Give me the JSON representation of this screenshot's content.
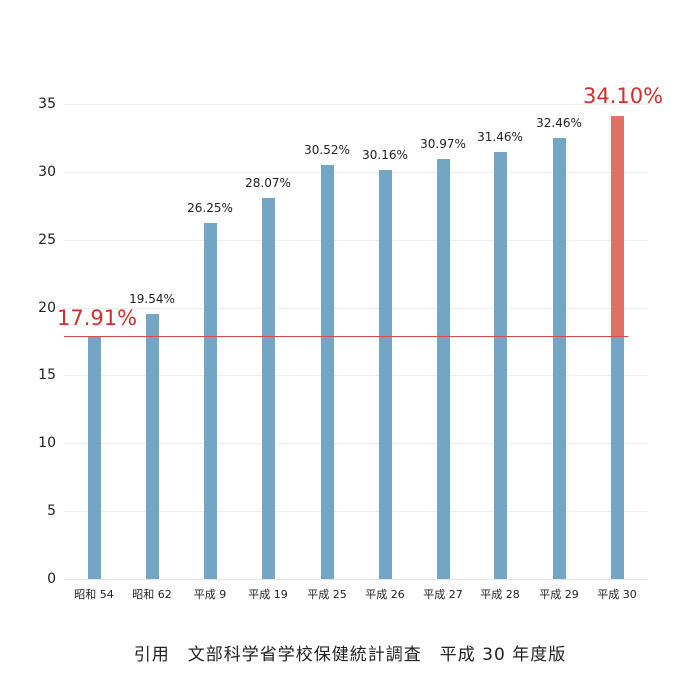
{
  "chart_data": {
    "type": "bar",
    "title": "",
    "xlabel": "",
    "ylabel": "",
    "ylim": [
      0,
      35
    ],
    "yticks": [
      0,
      5,
      10,
      15,
      20,
      25,
      30,
      35
    ],
    "grid": true,
    "categories": [
      "昭和 54",
      "昭和 62",
      "平成 9",
      "平成 19",
      "平成 25",
      "平成 26",
      "平成 27",
      "平成 28",
      "平成 29",
      "平成 30"
    ],
    "values": [
      17.91,
      19.54,
      26.25,
      28.07,
      30.52,
      30.16,
      30.97,
      31.46,
      32.46,
      34.1
    ],
    "value_labels": [
      "17.91%",
      "19.54%",
      "26.25%",
      "28.07%",
      "30.52%",
      "30.16%",
      "30.97%",
      "31.46%",
      "32.46%",
      "34.10%"
    ],
    "highlight_index": 9,
    "reference_line": {
      "value": 17.91,
      "label": "17.91%"
    },
    "colors": {
      "bar": "#73a6c4",
      "highlight": "#e07063",
      "reference": "#d94a4a",
      "accent_text": "#d0302c"
    },
    "source": "引用　文部科学省学校保健統計調査　平成 30 年度版"
  }
}
